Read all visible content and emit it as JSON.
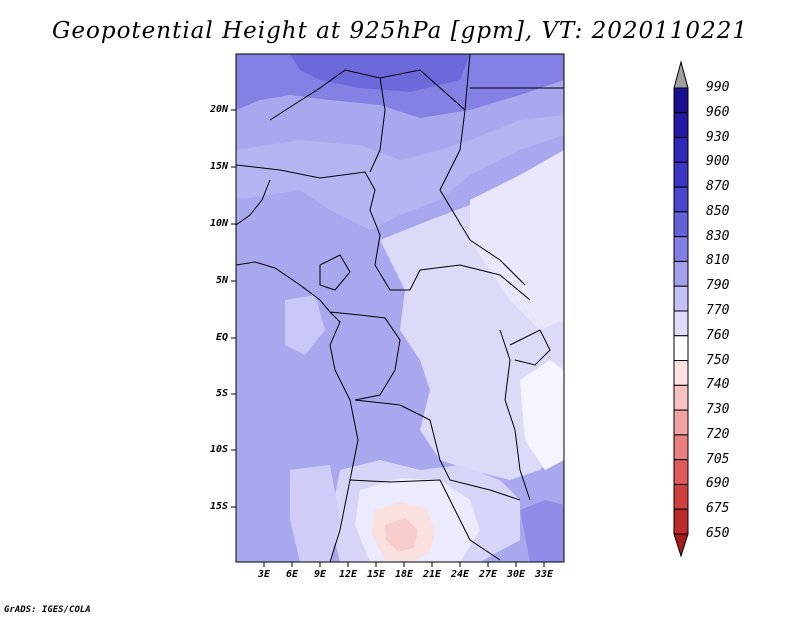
{
  "title": "Geopotential Height at 925hPa [gpm], VT: 2020110221",
  "footer": "GrADS: IGES/COLA",
  "map": {
    "lat_labels": [
      "20N",
      "15N",
      "10N",
      "5N",
      "EQ",
      "5S",
      "10S",
      "15S"
    ],
    "lon_labels": [
      "3E",
      "6E",
      "9E",
      "12E",
      "15E",
      "18E",
      "21E",
      "24E",
      "27E",
      "30E",
      "33E"
    ]
  },
  "colorbar": {
    "levels": [
      "990",
      "960",
      "930",
      "900",
      "870",
      "850",
      "830",
      "810",
      "790",
      "770",
      "760",
      "750",
      "740",
      "730",
      "720",
      "705",
      "690",
      "675",
      "650"
    ],
    "colors": [
      "#1a0f8f",
      "#241aa6",
      "#2f28b8",
      "#3c36c4",
      "#4a46cc",
      "#6460d8",
      "#827ee3",
      "#a29fec",
      "#c2c0f4",
      "#dedcfa",
      "#ffffff",
      "#fde2e2",
      "#f8c2c2",
      "#f2a2a2",
      "#ea7f7f",
      "#e05a5a",
      "#d03e3e",
      "#bc2a2a",
      "#a41b1b"
    ]
  }
}
